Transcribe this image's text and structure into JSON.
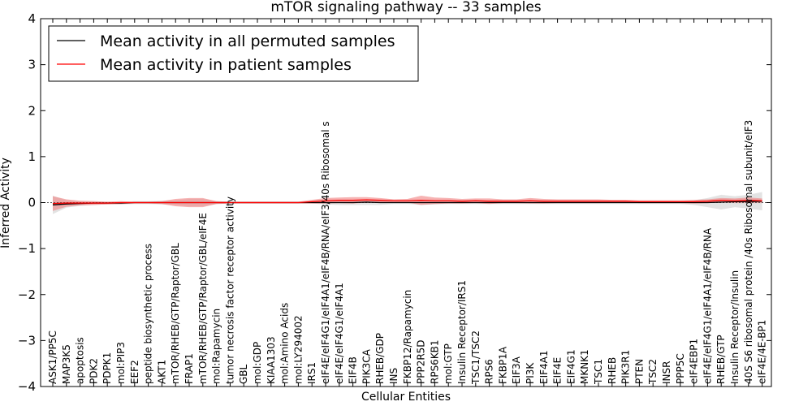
{
  "chart_data": {
    "type": "line",
    "title": "mTOR signaling pathway -- 33 samples",
    "xlabel": "Cellular Entities",
    "ylabel": "Inferred Activity",
    "ylim": [
      -4,
      4
    ],
    "yticks": [
      -4,
      -3,
      -2,
      -1,
      0,
      1,
      2,
      3,
      4
    ],
    "ytick_labels": [
      "−4",
      "−3",
      "−2",
      "−1",
      "0",
      "1",
      "2",
      "3",
      "4"
    ],
    "grid": false,
    "legend_position": "top-left",
    "categories": [
      "ASK1/PP5C",
      "MAP3K5",
      "apoptosis",
      "PDK2",
      "PDPK1",
      "mol:PIP3",
      "EEF2",
      "peptide biosynthetic process",
      "AKT1",
      "mTOR/RHEB/GTP/Raptor/GBL",
      "FRAP1",
      "mTOR/RHEB/GTP/Raptor/GBL/eIF4E",
      "mol:Rapamycin",
      "tumor necrosis factor receptor activity",
      "GBL",
      "mol:GDP",
      "KIAA1303",
      "mol:Amino Acids",
      "mol:LY294002",
      "IRS1",
      "eIF4E/eIF4G1/eIF4A1/eIF4B/RNA/eIF3/40s Ribosomal s",
      "eIF4E/eIF4G1/eIF4A1",
      "EIF4B",
      "PIK3CA",
      "RHEB/GDP",
      "INS",
      "FKBP12/Rapamycin",
      "PPP2R5D",
      "RPS6KB1",
      "mol:GTP",
      "Insulin Receptor/IRS1",
      "TSC1/TSC2",
      "RPS6",
      "FKBP1A",
      "EIF3A",
      "PI3K",
      "EIF4A1",
      "EIF4E",
      "EIF4G1",
      "MKNK1",
      "TSC1",
      "RHEB",
      "PIK3R1",
      "PTEN",
      "TSC2",
      "INSR",
      "PPP5C",
      "eIF4EBP1",
      "eIF4E/eIF4G1/eIF4A1/eIF4B/RNA",
      "RHEB/GTP",
      "Insulin Receptor/Insulin",
      "40S S6 ribosomal protein /40s Ribosomal subunit/eIF3",
      "eIF4E/4E-BP1"
    ],
    "series": [
      {
        "name": "Mean activity in all permuted samples",
        "color": "#000000",
        "band_color": "#b0b0b0",
        "values": [
          -0.05,
          -0.03,
          -0.02,
          -0.01,
          -0.01,
          -0.01,
          0,
          0,
          0,
          0,
          0,
          0,
          0,
          0,
          0,
          0,
          0,
          0,
          0,
          0,
          0,
          0,
          0,
          0.01,
          0,
          0,
          0,
          0,
          0,
          0,
          0,
          0,
          0,
          0,
          0,
          0,
          0,
          0,
          0,
          0,
          0,
          0,
          0,
          0,
          0,
          0,
          0,
          0,
          0,
          0.01,
          0.02,
          0.02,
          0.03
        ],
        "band": [
          0.2,
          0.08,
          0.05,
          0.04,
          0.03,
          0.03,
          0.03,
          0.03,
          0.04,
          0.05,
          0.08,
          0.08,
          0.03,
          0.02,
          0.02,
          0.02,
          0.02,
          0.02,
          0.02,
          0.02,
          0.04,
          0.05,
          0.05,
          0.06,
          0.05,
          0.03,
          0.03,
          0.05,
          0.04,
          0.03,
          0.03,
          0.03,
          0.03,
          0.03,
          0.03,
          0.03,
          0.03,
          0.03,
          0.03,
          0.03,
          0.03,
          0.03,
          0.03,
          0.03,
          0.03,
          0.03,
          0.03,
          0.05,
          0.1,
          0.16,
          0.12,
          0.15,
          0.2
        ]
      },
      {
        "name": "Mean activity in patient samples",
        "color": "#ff0000",
        "band_color": "#f08080",
        "values": [
          -0.02,
          -0.01,
          -0.01,
          -0.01,
          -0.01,
          0,
          0,
          0,
          0,
          0,
          0,
          0,
          0,
          0,
          0,
          0,
          0,
          0,
          0,
          0.02,
          0.04,
          0.05,
          0.05,
          0.06,
          0.05,
          0.04,
          0.04,
          0.05,
          0.04,
          0.04,
          0.03,
          0.04,
          0.03,
          0.03,
          0.03,
          0.04,
          0.03,
          0.03,
          0.03,
          0.03,
          0.03,
          0.03,
          0.03,
          0.02,
          0.02,
          0.02,
          0.02,
          0.02,
          0.03,
          0.05,
          0.04,
          0.05,
          0.04
        ],
        "band": [
          0.16,
          0.08,
          0.05,
          0.04,
          0.03,
          0.03,
          0.02,
          0.02,
          0.03,
          0.08,
          0.1,
          0.1,
          0.03,
          0.02,
          0.02,
          0.02,
          0.02,
          0.02,
          0.02,
          0.04,
          0.06,
          0.06,
          0.07,
          0.06,
          0.05,
          0.03,
          0.04,
          0.1,
          0.07,
          0.06,
          0.05,
          0.05,
          0.06,
          0.04,
          0.04,
          0.06,
          0.05,
          0.04,
          0.04,
          0.04,
          0.04,
          0.03,
          0.03,
          0.03,
          0.03,
          0.03,
          0.03,
          0.04,
          0.04,
          0.05,
          0.05,
          0.06,
          0.05
        ]
      }
    ]
  }
}
